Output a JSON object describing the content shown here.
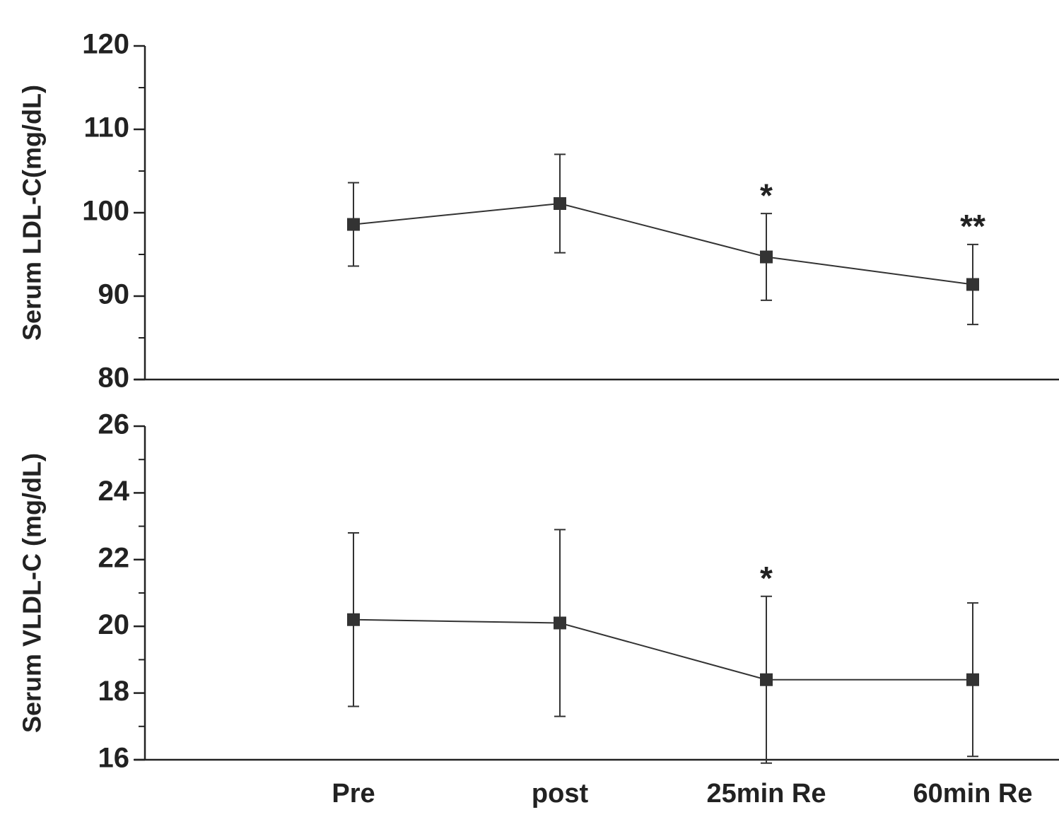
{
  "chart_data": [
    {
      "type": "line",
      "ylabel": "Serum LDL-C(mg/dL)",
      "ylim": [
        80,
        120
      ],
      "yticks": [
        80,
        90,
        100,
        110,
        120
      ],
      "series": [
        {
          "color": "#333333",
          "values": [
            98.6,
            101.1,
            94.7,
            91.4
          ],
          "errors": [
            5.0,
            5.9,
            5.2,
            4.8
          ]
        }
      ],
      "annotations": [
        null,
        null,
        "*",
        "**"
      ]
    },
    {
      "type": "line",
      "ylabel": "Serum VLDL-C (mg/dL)",
      "categories": [
        "Pre",
        "post",
        "25min Re",
        "60min Re"
      ],
      "ylim": [
        16,
        26
      ],
      "yticks": [
        16,
        18,
        20,
        22,
        24,
        26
      ],
      "series": [
        {
          "color": "#333333",
          "values": [
            20.2,
            20.1,
            18.4,
            18.4
          ],
          "errors": [
            2.6,
            2.8,
            2.5,
            2.3
          ]
        }
      ],
      "annotations": [
        null,
        null,
        "*",
        null
      ]
    }
  ]
}
